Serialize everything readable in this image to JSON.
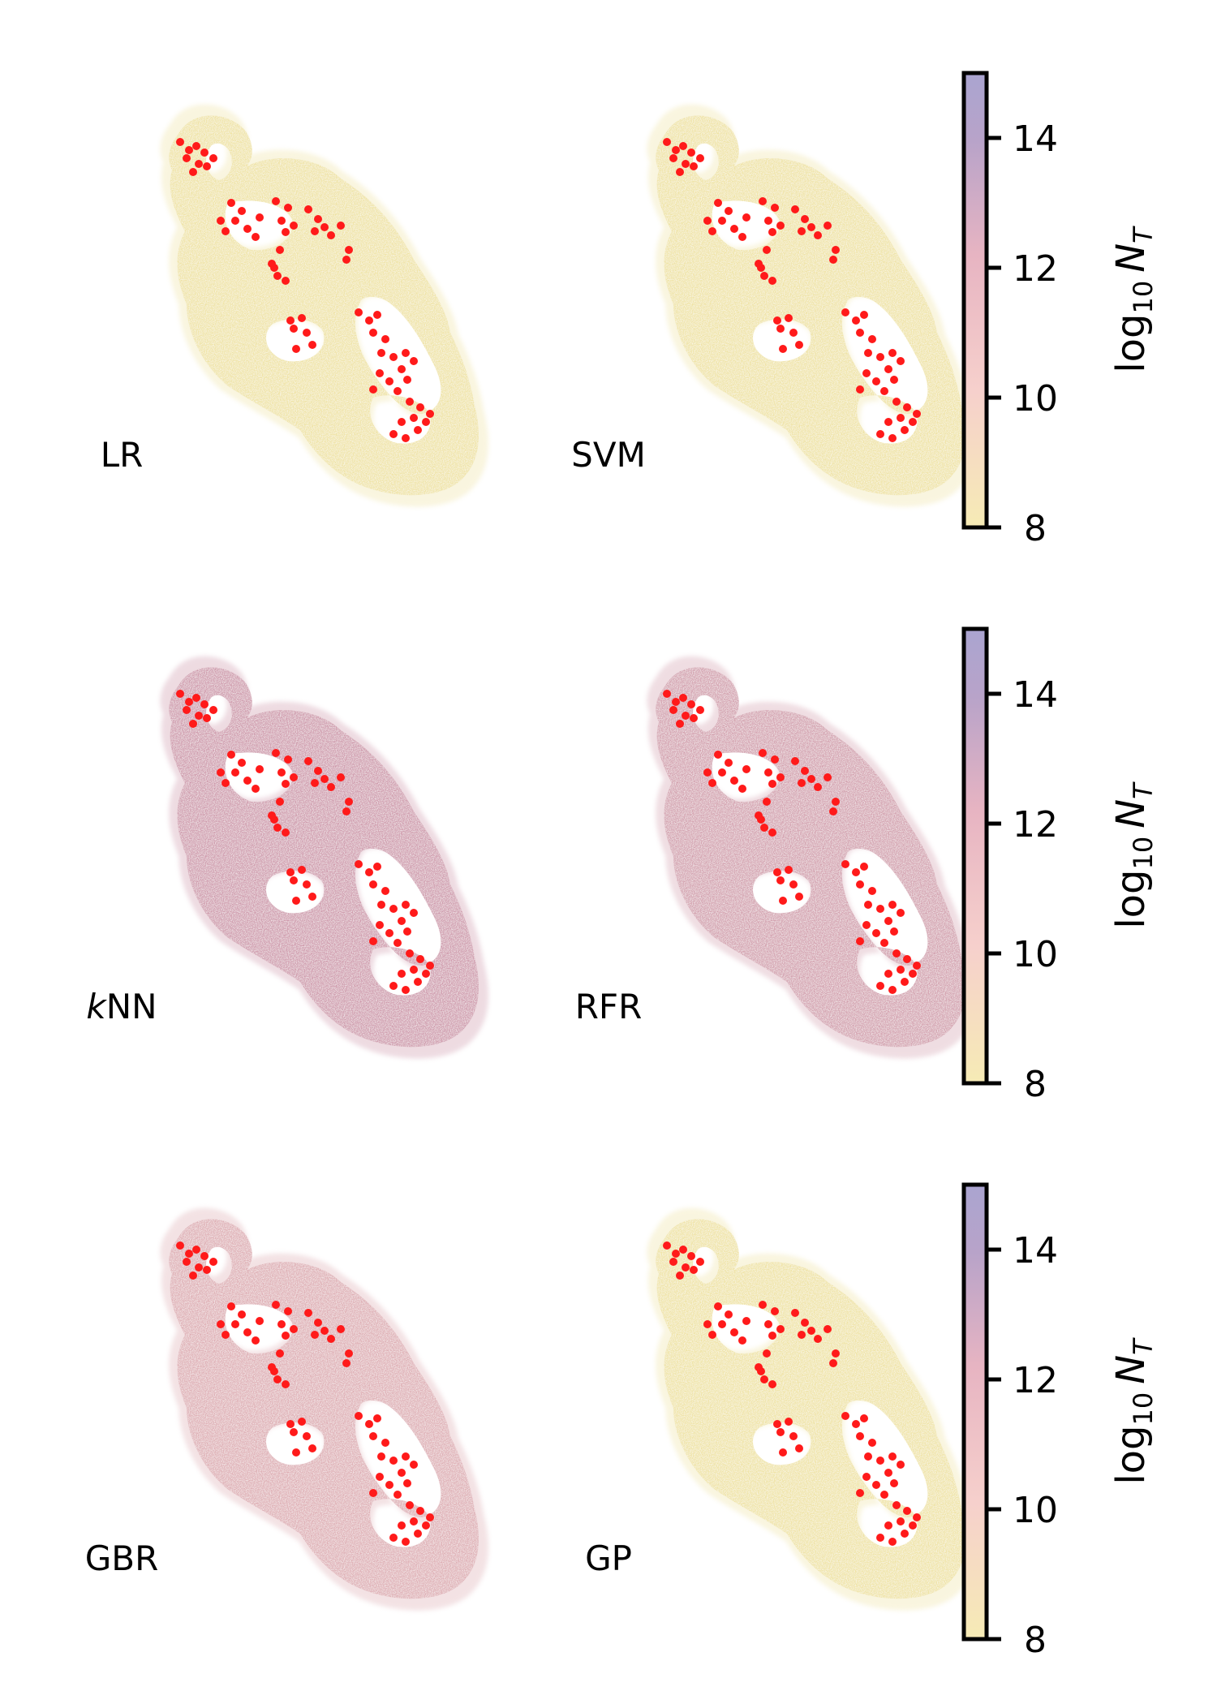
{
  "figure": {
    "colorbar": {
      "title_prefix": "log",
      "title_subscript": "10",
      "title_var": "N",
      "title_var_subscript": "T",
      "ticks": [
        8,
        10,
        12,
        14
      ],
      "tick_labels": [
        "8",
        "10",
        "12",
        "14"
      ],
      "range": [
        8,
        15
      ],
      "colormap": [
        "#f6ebb5",
        "#f6d0cc",
        "#e7b4c2",
        "#b8a3c9",
        "#aaa4d0"
      ]
    },
    "marker_color": "#ff1a1a"
  },
  "chart_data": [
    {
      "type": "scatter",
      "label": "LR",
      "row": 1,
      "col": 1,
      "dominant_log10_NT": 8.4,
      "colors": {
        "main": "#efe3a4",
        "mid": "#efe3a4",
        "edge": "#a79ac8"
      }
    },
    {
      "type": "scatter",
      "label": "SVM",
      "row": 1,
      "col": 2,
      "dominant_log10_NT": 8.4,
      "colors": {
        "main": "#efe3a4",
        "mid": "#efe3a4",
        "edge": "#a79ac8"
      }
    },
    {
      "type": "scatter",
      "label_italic": "k",
      "label": "NN",
      "row": 2,
      "col": 1,
      "dominant_log10_NT": 12.5,
      "colors": {
        "main": "#cf9aac",
        "mid": "#9d86b8",
        "edge": "#8e84be"
      }
    },
    {
      "type": "scatter",
      "label": "RFR",
      "row": 2,
      "col": 2,
      "dominant_log10_NT": 12.0,
      "colors": {
        "main": "#d3a0ae",
        "mid": "#ecd49e",
        "edge": "#a99bc4"
      }
    },
    {
      "type": "scatter",
      "label": "GBR",
      "row": 3,
      "col": 1,
      "dominant_log10_NT": 11.5,
      "colors": {
        "main": "#deaeb4",
        "mid": "#eed7a3",
        "edge": "#b5a2c6"
      }
    },
    {
      "type": "scatter",
      "label": "GP",
      "row": 3,
      "col": 2,
      "dominant_log10_NT": 8.6,
      "colors": {
        "main": "#efe3a4",
        "mid": "#efe3a4",
        "edge": "#a79ac8"
      }
    }
  ]
}
